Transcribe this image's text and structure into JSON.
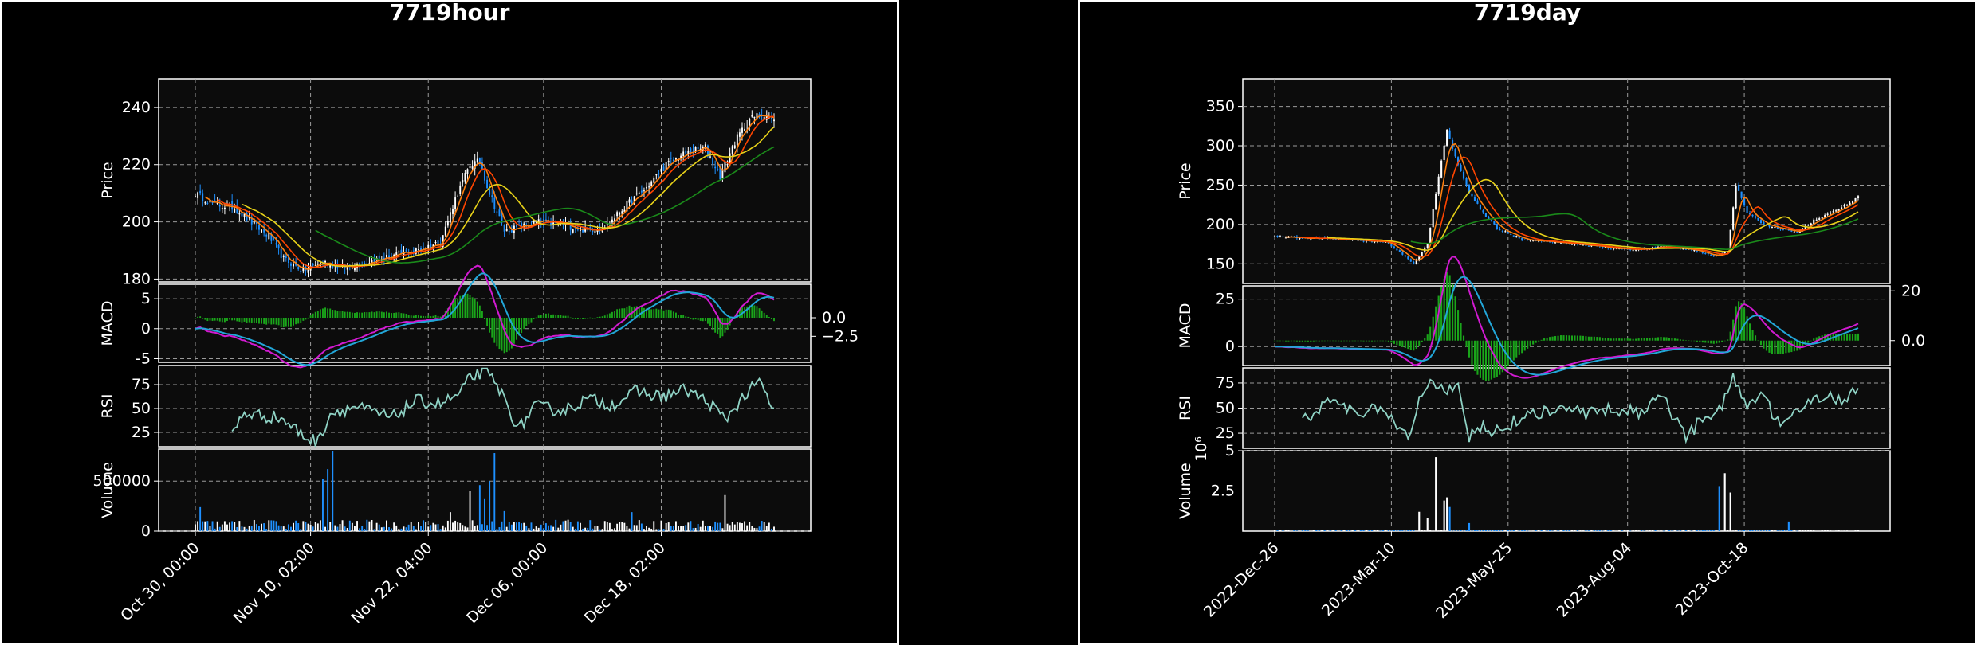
{
  "chart_data": [
    {
      "type": "candlestick",
      "title": "7719hour",
      "panels": {
        "price": {
          "ylabel": "Price",
          "yticks": [
            180,
            200,
            220,
            240
          ],
          "ylim": [
            179,
            250
          ]
        },
        "macd": {
          "ylabel": "MACD",
          "yticks": [
            -5,
            0,
            5
          ],
          "yticks_right": [
            0.0,
            -2.5
          ],
          "ylim": [
            -5.6,
            7.4
          ],
          "ylim_right": [
            -6,
            4.5
          ]
        },
        "rsi": {
          "ylabel": "RSI",
          "yticks": [
            25,
            50,
            75
          ],
          "ylim": [
            10,
            95
          ]
        },
        "volume": {
          "ylabel": "Volume",
          "yticks": [
            0,
            500000
          ],
          "ylim": [
            0,
            820000
          ]
        }
      },
      "x_tick_labels": [
        "Oct 30, 00:00",
        "Nov 10, 02:00",
        "Nov 22, 04:00",
        "Dec 06, 00:00",
        "Dec 18, 02:00"
      ],
      "close_anchors": [
        [
          0,
          210
        ],
        [
          8,
          206
        ],
        [
          16,
          205
        ],
        [
          24,
          199
        ],
        [
          30,
          195
        ],
        [
          36,
          187
        ],
        [
          44,
          183
        ],
        [
          52,
          186
        ],
        [
          60,
          184
        ],
        [
          70,
          186
        ],
        [
          80,
          188
        ],
        [
          90,
          190
        ],
        [
          100,
          193
        ],
        [
          106,
          208
        ],
        [
          112,
          220
        ],
        [
          116,
          221
        ],
        [
          120,
          210
        ],
        [
          126,
          197
        ],
        [
          132,
          198
        ],
        [
          140,
          200
        ],
        [
          150,
          199
        ],
        [
          160,
          197
        ],
        [
          168,
          199
        ],
        [
          176,
          206
        ],
        [
          184,
          212
        ],
        [
          192,
          220
        ],
        [
          200,
          224
        ],
        [
          208,
          226
        ],
        [
          214,
          216
        ],
        [
          220,
          228
        ],
        [
          226,
          236
        ],
        [
          232,
          238
        ],
        [
          236,
          235
        ]
      ],
      "candle_count": 237,
      "ma_periods": [
        5,
        10,
        20,
        50
      ],
      "ma_colors": [
        "#ff7f0e",
        "#ff4500",
        "#e8d219",
        "#1a8a1a"
      ],
      "rsi_anchors": [
        [
          15,
          24
        ],
        [
          20,
          45
        ],
        [
          35,
          40
        ],
        [
          45,
          20
        ],
        [
          50,
          15
        ],
        [
          55,
          45
        ],
        [
          65,
          52
        ],
        [
          80,
          40
        ],
        [
          90,
          58
        ],
        [
          100,
          55
        ],
        [
          108,
          65
        ],
        [
          112,
          82
        ],
        [
          118,
          90
        ],
        [
          124,
          70
        ],
        [
          132,
          28
        ],
        [
          138,
          52
        ],
        [
          150,
          48
        ],
        [
          160,
          60
        ],
        [
          170,
          54
        ],
        [
          180,
          68
        ],
        [
          190,
          62
        ],
        [
          200,
          70
        ],
        [
          210,
          55
        ],
        [
          216,
          38
        ],
        [
          222,
          58
        ],
        [
          230,
          78
        ],
        [
          236,
          48
        ]
      ],
      "volume_spikes": [
        [
          2,
          240000
        ],
        [
          52,
          520000
        ],
        [
          54,
          620000
        ],
        [
          56,
          800000
        ],
        [
          104,
          190000
        ],
        [
          112,
          400000
        ],
        [
          116,
          460000
        ],
        [
          118,
          320000
        ],
        [
          120,
          500000
        ],
        [
          122,
          780000
        ],
        [
          126,
          200000
        ],
        [
          178,
          190000
        ],
        [
          216,
          360000
        ]
      ],
      "volume_base": 60000
    },
    {
      "type": "candlestick",
      "title": "7719day",
      "panels": {
        "price": {
          "ylabel": "Price",
          "yticks": [
            150,
            200,
            250,
            300,
            350
          ],
          "ylim": [
            125,
            385
          ]
        },
        "macd": {
          "ylabel": "MACD",
          "yticks": [
            0,
            25
          ],
          "yticks_right": [
            20,
            0
          ],
          "ylim": [
            -10,
            32
          ],
          "ylim_right": [
            -10,
            22
          ]
        },
        "rsi": {
          "ylabel": "RSI",
          "yticks": [
            25,
            50,
            75
          ],
          "ylim": [
            10,
            90
          ]
        },
        "volume": {
          "ylabel": "Volume",
          "yticks": [
            2.5,
            5.0
          ],
          "yexponent": "10⁶",
          "ylim": [
            0,
            5.0
          ]
        }
      },
      "x_tick_labels": [
        "2022-Dec-26",
        "2023-Mar-10",
        "2023-May-25",
        "2023-Aug-04",
        "2023-Oct-18"
      ],
      "close_anchors": [
        [
          0,
          185
        ],
        [
          10,
          183
        ],
        [
          20,
          182
        ],
        [
          30,
          180
        ],
        [
          40,
          178
        ],
        [
          45,
          165
        ],
        [
          50,
          150
        ],
        [
          55,
          175
        ],
        [
          58,
          240
        ],
        [
          62,
          320
        ],
        [
          66,
          275
        ],
        [
          70,
          240
        ],
        [
          75,
          215
        ],
        [
          80,
          195
        ],
        [
          90,
          180
        ],
        [
          100,
          178
        ],
        [
          110,
          175
        ],
        [
          120,
          170
        ],
        [
          130,
          168
        ],
        [
          140,
          172
        ],
        [
          150,
          168
        ],
        [
          158,
          160
        ],
        [
          163,
          165
        ],
        [
          166,
          250
        ],
        [
          170,
          215
        ],
        [
          176,
          200
        ],
        [
          182,
          195
        ],
        [
          188,
          190
        ],
        [
          194,
          205
        ],
        [
          200,
          215
        ],
        [
          206,
          225
        ],
        [
          210,
          235
        ]
      ],
      "candle_count": 211,
      "ma_periods": [
        5,
        10,
        20,
        50
      ],
      "ma_colors": [
        "#ff7f0e",
        "#ff4500",
        "#e8d219",
        "#1a8a1a"
      ],
      "rsi_anchors": [
        [
          10,
          40
        ],
        [
          15,
          45
        ],
        [
          20,
          58
        ],
        [
          25,
          50
        ],
        [
          30,
          45
        ],
        [
          35,
          48
        ],
        [
          42,
          44
        ],
        [
          48,
          18
        ],
        [
          52,
          58
        ],
        [
          56,
          78
        ],
        [
          62,
          68
        ],
        [
          66,
          72
        ],
        [
          70,
          20
        ],
        [
          74,
          30
        ],
        [
          80,
          28
        ],
        [
          90,
          42
        ],
        [
          100,
          50
        ],
        [
          110,
          45
        ],
        [
          120,
          50
        ],
        [
          130,
          45
        ],
        [
          140,
          60
        ],
        [
          148,
          20
        ],
        [
          154,
          40
        ],
        [
          160,
          48
        ],
        [
          165,
          85
        ],
        [
          170,
          52
        ],
        [
          176,
          62
        ],
        [
          182,
          30
        ],
        [
          190,
          50
        ],
        [
          196,
          62
        ],
        [
          204,
          60
        ],
        [
          210,
          68
        ]
      ],
      "volume_spikes": [
        [
          52,
          1.2
        ],
        [
          55,
          0.8
        ],
        [
          58,
          4.6
        ],
        [
          61,
          1.9
        ],
        [
          62,
          2.1
        ],
        [
          63,
          1.5
        ],
        [
          70,
          0.5
        ],
        [
          160,
          2.8
        ],
        [
          162,
          3.6
        ],
        [
          164,
          2.4
        ],
        [
          185,
          0.6
        ]
      ],
      "volume_base": 0.05
    }
  ]
}
